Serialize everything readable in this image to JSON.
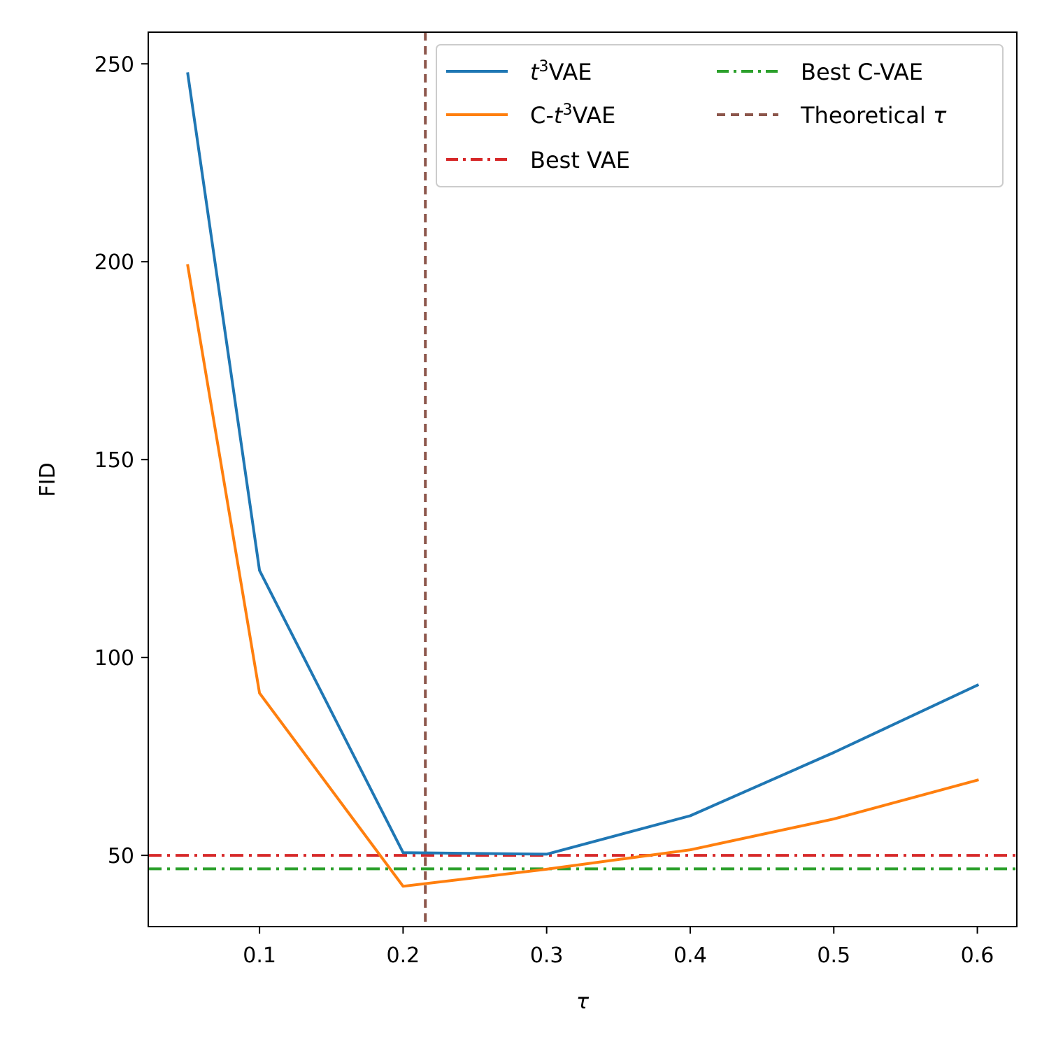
{
  "chart_data": {
    "type": "line",
    "title": "",
    "xlabel": "τ",
    "ylabel": "FID",
    "xlim": [
      0.0225,
      0.6275
    ],
    "ylim": [
      32,
      258
    ],
    "xticks": [
      0.1,
      0.2,
      0.3,
      0.4,
      0.5,
      0.6
    ],
    "xtick_labels": [
      "0.1",
      "0.2",
      "0.3",
      "0.4",
      "0.5",
      "0.6"
    ],
    "yticks": [
      50,
      100,
      150,
      200,
      250
    ],
    "ytick_labels": [
      "50",
      "100",
      "150",
      "200",
      "250"
    ],
    "grid": false,
    "legend_position": "top-right",
    "legend_columns": 2,
    "x": [
      0.05,
      0.1,
      0.2,
      0.3,
      0.4,
      0.5,
      0.6
    ],
    "series": [
      {
        "name": "t³VAE",
        "label_parts": [
          "",
          "t",
          "3",
          "VAE"
        ],
        "color": "#1f77b4",
        "style": "solid",
        "values": [
          247.5,
          122,
          50.7,
          50.3,
          60,
          76,
          93
        ]
      },
      {
        "name": "C-t³VAE",
        "label_parts": [
          "C-",
          "t",
          "3",
          "VAE"
        ],
        "color": "#ff7f0e",
        "style": "solid",
        "values": [
          199,
          91,
          42.2,
          46.5,
          51.4,
          59.2,
          69
        ]
      }
    ],
    "hlines": [
      {
        "name": "Best VAE",
        "label_parts": [
          "Best VAE"
        ],
        "color": "#d62728",
        "style": "dashdot",
        "value": 50
      },
      {
        "name": "Best C-VAE",
        "label_parts": [
          "Best C-VAE"
        ],
        "color": "#2ca02c",
        "style": "dashdot",
        "value": 46.6
      }
    ],
    "vlines": [
      {
        "name": "Theoretical τ",
        "label_parts": [
          "Theoretical τ"
        ],
        "color": "#8c564b",
        "style": "dashed",
        "value": 0.2155
      }
    ]
  }
}
